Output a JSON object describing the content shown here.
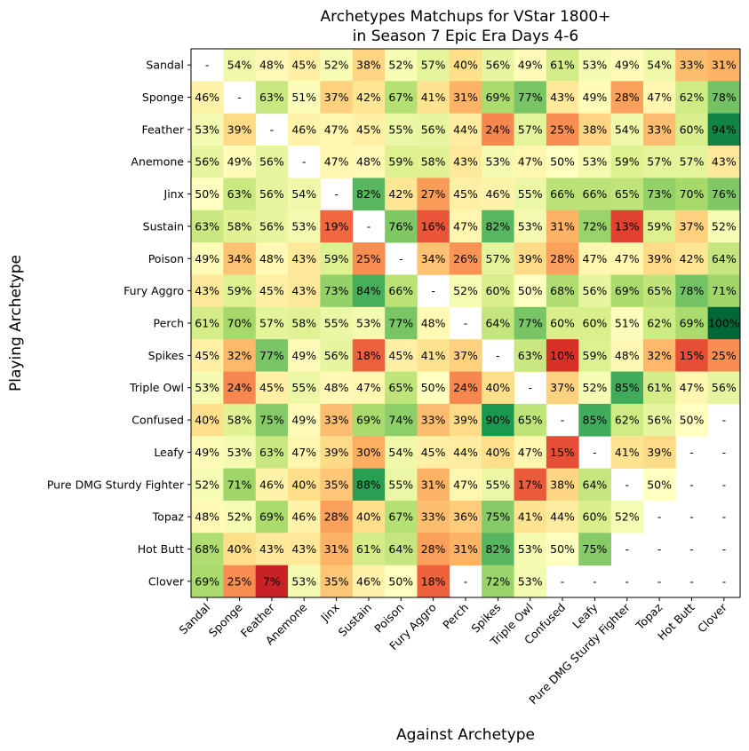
{
  "chart_data": {
    "type": "heatmap",
    "title": [
      "Archetypes Matchups for VStar 1800+",
      "in Season 7 Epic Era Days 4-6"
    ],
    "xlabel": "Against Archetype",
    "ylabel": "Playing Archetype",
    "rows": [
      "Sandal",
      "Sponge",
      "Feather",
      "Anemone",
      "Jinx",
      "Sustain",
      "Poison",
      "Fury Aggro",
      "Perch",
      "Spikes",
      "Triple Owl",
      "Confused",
      "Leafy",
      "Pure DMG Sturdy Fighter",
      "Topaz",
      "Hot Butt",
      "Clover"
    ],
    "columns": [
      "Sandal",
      "Sponge",
      "Feather",
      "Anemone",
      "Jinx",
      "Sustain",
      "Poison",
      "Fury Aggro",
      "Perch",
      "Spikes",
      "Triple Owl",
      "Confused",
      "Leafy",
      "Pure DMG Sturdy Fighter",
      "Topaz",
      "Hot Butt",
      "Clover"
    ],
    "values": [
      [
        null,
        54,
        48,
        45,
        52,
        38,
        52,
        57,
        40,
        56,
        49,
        61,
        53,
        49,
        54,
        33,
        31
      ],
      [
        46,
        null,
        63,
        51,
        37,
        42,
        67,
        41,
        31,
        69,
        77,
        43,
        49,
        28,
        47,
        62,
        78
      ],
      [
        53,
        39,
        null,
        46,
        47,
        45,
        55,
        56,
        44,
        24,
        57,
        25,
        38,
        54,
        33,
        60,
        94
      ],
      [
        56,
        49,
        56,
        null,
        47,
        48,
        59,
        58,
        43,
        53,
        47,
        50,
        53,
        59,
        57,
        57,
        43
      ],
      [
        50,
        63,
        56,
        54,
        null,
        82,
        42,
        27,
        45,
        46,
        55,
        66,
        66,
        65,
        73,
        70,
        76
      ],
      [
        63,
        58,
        56,
        53,
        19,
        null,
        76,
        16,
        47,
        82,
        53,
        31,
        72,
        13,
        59,
        37,
        52
      ],
      [
        49,
        34,
        48,
        43,
        59,
        25,
        null,
        34,
        26,
        57,
        39,
        28,
        47,
        47,
        39,
        42,
        64
      ],
      [
        43,
        59,
        45,
        43,
        73,
        84,
        66,
        null,
        52,
        60,
        50,
        68,
        56,
        69,
        65,
        78,
        71
      ],
      [
        61,
        70,
        57,
        58,
        55,
        53,
        77,
        48,
        null,
        64,
        77,
        60,
        60,
        51,
        62,
        69,
        100
      ],
      [
        45,
        32,
        77,
        49,
        56,
        18,
        45,
        41,
        37,
        null,
        63,
        10,
        59,
        48,
        32,
        15,
        25
      ],
      [
        53,
        24,
        45,
        55,
        48,
        47,
        65,
        50,
        24,
        40,
        null,
        37,
        52,
        85,
        61,
        47,
        56
      ],
      [
        40,
        58,
        75,
        49,
        33,
        69,
        74,
        33,
        39,
        90,
        65,
        null,
        85,
        62,
        56,
        50,
        null
      ],
      [
        49,
        53,
        63,
        47,
        39,
        30,
        54,
        45,
        44,
        40,
        47,
        15,
        null,
        41,
        39,
        null,
        null
      ],
      [
        52,
        71,
        46,
        40,
        35,
        88,
        55,
        31,
        47,
        55,
        17,
        38,
        64,
        null,
        50,
        null,
        null
      ],
      [
        48,
        52,
        69,
        46,
        28,
        40,
        67,
        33,
        36,
        75,
        41,
        44,
        60,
        52,
        null,
        null,
        null
      ],
      [
        68,
        40,
        43,
        43,
        31,
        61,
        64,
        28,
        31,
        82,
        53,
        50,
        75,
        null,
        null,
        null,
        null
      ],
      [
        69,
        25,
        7,
        53,
        35,
        46,
        50,
        18,
        null,
        72,
        53,
        null,
        null,
        null,
        null,
        null,
        null
      ]
    ],
    "missing_label": "-",
    "colormap": "RdYlGn",
    "vlim": [
      0,
      100
    ]
  }
}
